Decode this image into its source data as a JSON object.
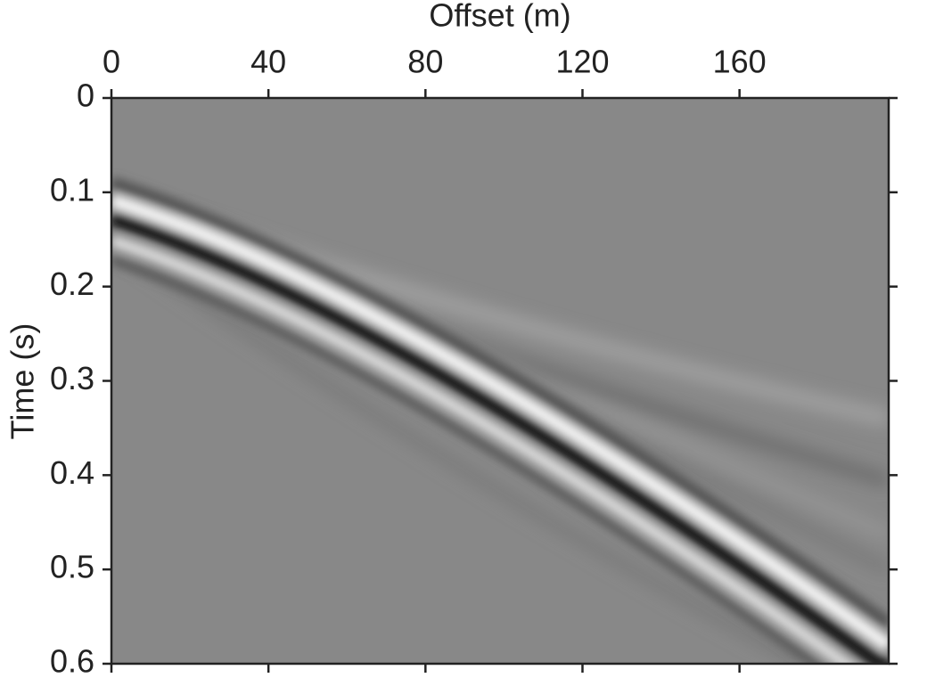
{
  "chart_data": {
    "type": "image",
    "xlabel": "Offset (m)",
    "ylabel": "Time (s)",
    "xlim": [
      0,
      198
    ],
    "xticks": [
      0,
      40,
      80,
      120,
      160
    ],
    "x_axis_position": "top",
    "ylim": [
      0,
      0.6
    ],
    "yticks": [
      0,
      0.1,
      0.2,
      0.3,
      0.4,
      0.5,
      0.6
    ],
    "y_inverted": true,
    "colormap": "gray"
  }
}
